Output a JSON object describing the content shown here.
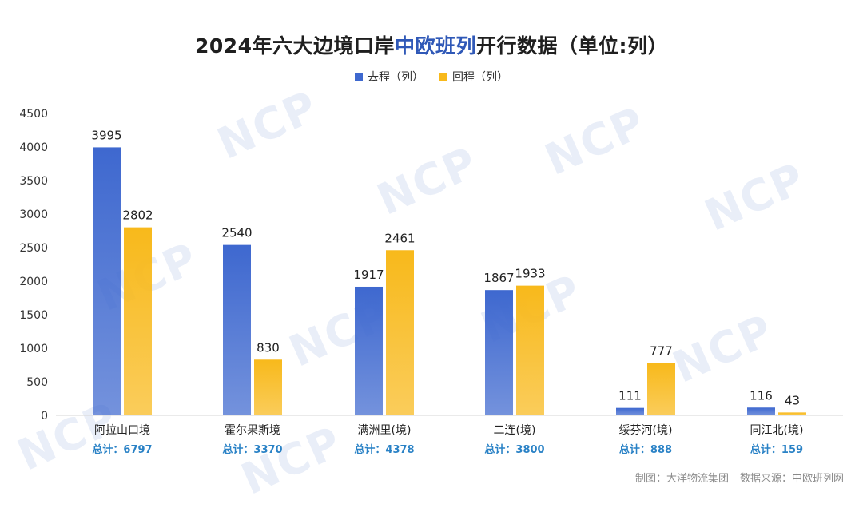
{
  "title": {
    "prefix": "2024年六大边境口岸",
    "highlight": "中欧班列",
    "suffix": "开行数据（单位:列）",
    "highlight_color": "#2f58b7"
  },
  "watermark": "NCP",
  "footer": {
    "credit": "制图：大洋物流集团",
    "source": "数据来源：中欧班列网"
  },
  "chart_data": {
    "type": "bar",
    "categories": [
      "阿拉山口境",
      "霍尔果斯境",
      "满洲里(境)",
      "二连(境)",
      "绥芬河(境)",
      "同江北(境)"
    ],
    "totals": [
      "总计：6797",
      "总计：3370",
      "总计：4378",
      "总计：3800",
      "总计：888",
      "总计：159"
    ],
    "series": [
      {
        "name": "去程（列）",
        "values": [
          3995,
          2540,
          1917,
          1867,
          111,
          116
        ],
        "color": "#3e68cf"
      },
      {
        "name": "回程（列）",
        "values": [
          2802,
          830,
          2461,
          1933,
          777,
          43
        ],
        "color": "#f8b91b"
      }
    ],
    "ylim": [
      0,
      4500
    ],
    "yticks": [
      0,
      500,
      1000,
      1500,
      2000,
      2500,
      3000,
      3500,
      4000,
      4500
    ],
    "grid": false,
    "legend_position": "top",
    "totals_color": "#2a82c6"
  }
}
